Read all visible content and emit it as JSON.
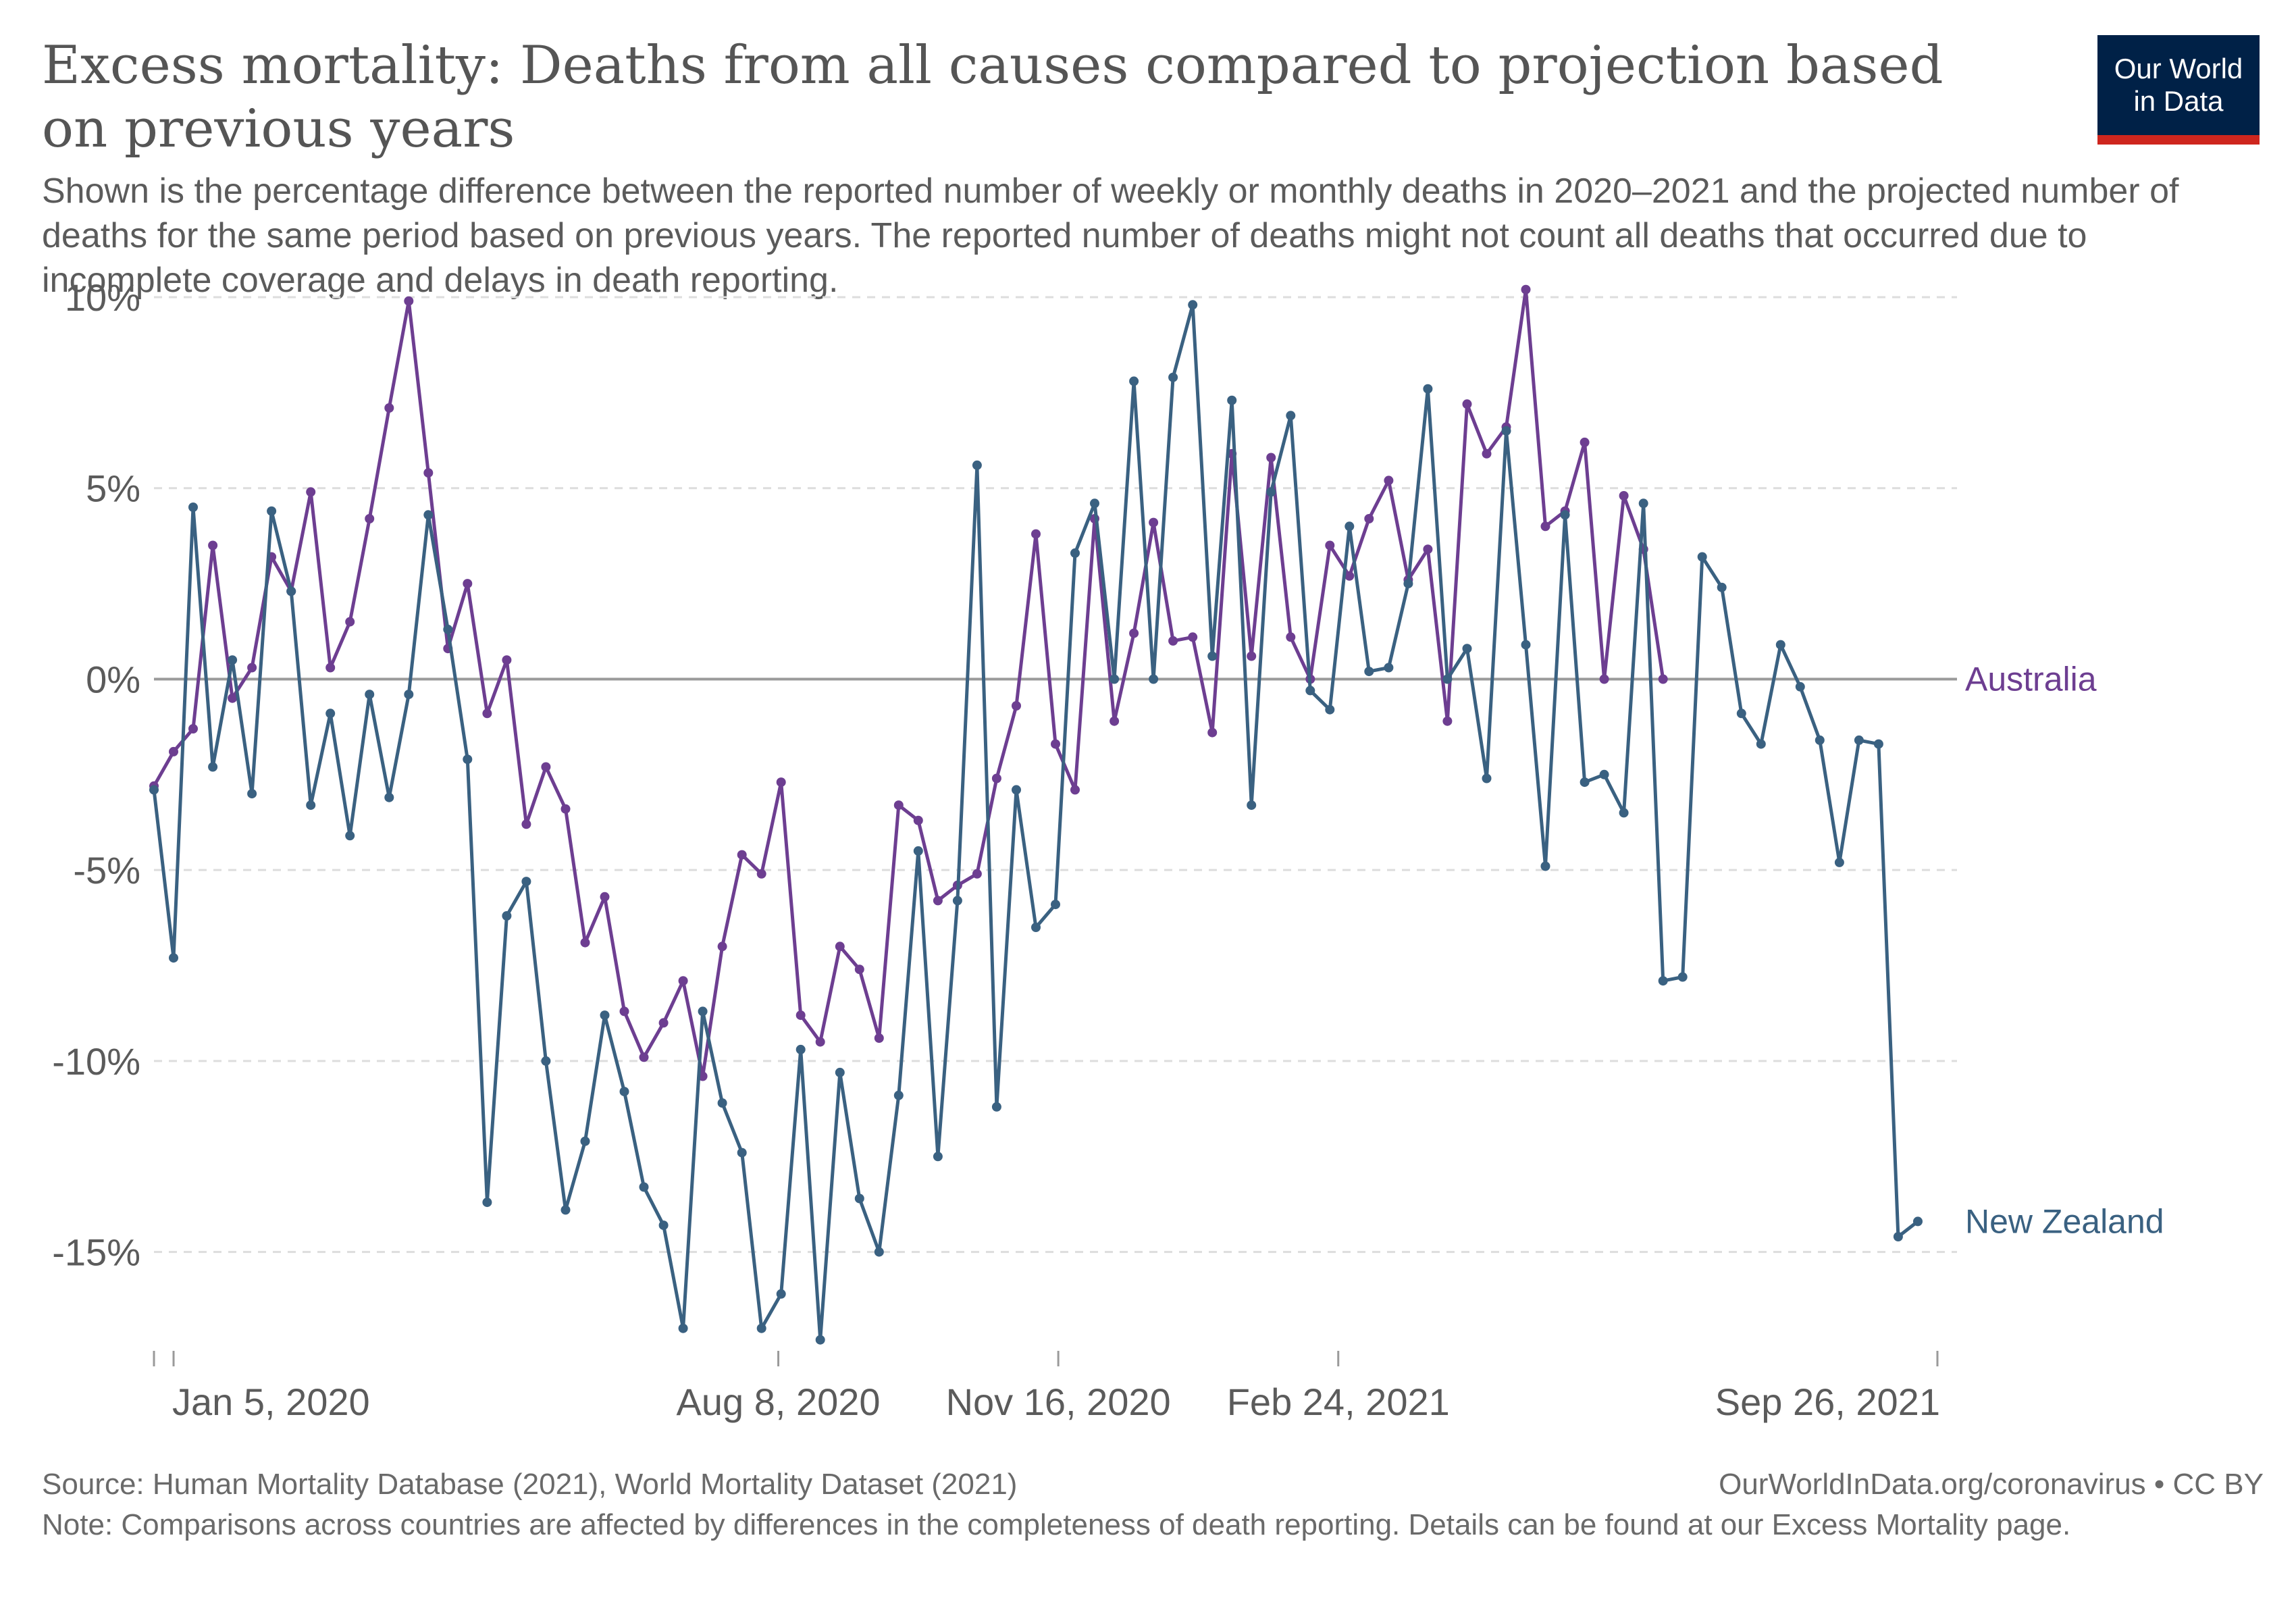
{
  "header": {
    "title": "Excess mortality: Deaths from all causes compared to projection based on previous years",
    "subtitle": "Shown is the percentage difference between the reported number of weekly or monthly deaths in 2020–2021 and the projected number of deaths for the same period based on previous years. The reported number of deaths might not count all deaths that occurred due to incomplete coverage and delays in death reporting."
  },
  "logo": {
    "line1": "Our World",
    "line2": "in Data",
    "bg_color": "#002147",
    "accent_color": "#ce261e"
  },
  "footer": {
    "source": "Source: Human Mortality Database (2021), World Mortality Dataset (2021)",
    "license": "OurWorldInData.org/coronavirus • CC BY",
    "note": "Note: Comparisons across countries are affected by differences in the completeness of death reporting. Details can be found at our Excess Mortality page."
  },
  "chart_data": {
    "type": "line",
    "title": "Excess mortality: Deaths from all causes compared to projection based on previous years",
    "ylim": [
      -17.5,
      10
    ],
    "y_ticks": [
      10,
      5,
      0,
      -5,
      -10,
      -15
    ],
    "y_tick_labels": [
      "10%",
      "5%",
      "0%",
      "-5%",
      "-10%",
      "-15%"
    ],
    "x_start": "2019-12-29",
    "x_end": "2021-10-03",
    "x_ticks": [
      {
        "date": "2020-01-05",
        "label": "Jan 5, 2020"
      },
      {
        "date": "2020-08-08",
        "label": "Aug 8, 2020"
      },
      {
        "date": "2020-11-16",
        "label": "Nov 16, 2020"
      },
      {
        "date": "2021-02-24",
        "label": "Feb 24, 2021"
      },
      {
        "date": "2021-09-26",
        "label": "Sep 26, 2021"
      }
    ],
    "grid": true,
    "series": [
      {
        "name": "Australia",
        "color": "#6d3e91",
        "start": "2019-12-29",
        "step_days": 7,
        "values": [
          -2.8,
          -1.9,
          -1.3,
          3.5,
          -0.5,
          0.3,
          3.2,
          2.3,
          4.9,
          0.3,
          1.5,
          4.2,
          7.1,
          9.9,
          5.4,
          0.8,
          2.5,
          -0.9,
          0.5,
          -3.8,
          -2.3,
          -3.4,
          -6.9,
          -5.7,
          -8.7,
          -9.9,
          -9.0,
          -7.9,
          -10.4,
          -7.0,
          -4.6,
          -5.1,
          -2.7,
          -8.8,
          -9.5,
          -7.0,
          -7.6,
          -9.4,
          -3.3,
          -3.7,
          -5.8,
          -5.4,
          -5.1,
          -2.6,
          -0.7,
          3.8,
          -1.7,
          -2.9,
          4.2,
          -1.1,
          1.2,
          4.1,
          1.0,
          1.1,
          -1.4,
          5.9,
          0.6,
          5.8,
          1.1,
          0.0,
          3.5,
          2.7,
          4.2,
          5.2,
          2.6,
          3.4,
          -1.1,
          7.2,
          5.9,
          6.6,
          10.2,
          4.0,
          4.4,
          6.2,
          0.0,
          4.8,
          3.4,
          0.0
        ]
      },
      {
        "name": "New Zealand",
        "color": "#3a6181",
        "start": "2019-12-29",
        "step_days": 7,
        "values": [
          -2.9,
          -7.3,
          4.5,
          -2.3,
          0.5,
          -3.0,
          4.4,
          2.3,
          -3.3,
          -0.9,
          -4.1,
          -0.4,
          -3.1,
          -0.4,
          4.3,
          1.3,
          -2.1,
          -13.7,
          -6.2,
          -5.3,
          -10.0,
          -13.9,
          -12.1,
          -8.8,
          -10.8,
          -13.3,
          -14.3,
          -17.0,
          -8.7,
          -11.1,
          -12.4,
          -17.0,
          -16.1,
          -9.7,
          -17.3,
          -10.3,
          -13.6,
          -15.0,
          -10.9,
          -4.5,
          -12.5,
          -5.8,
          5.6,
          -11.2,
          -2.9,
          -6.5,
          -5.9,
          3.3,
          4.6,
          0.0,
          7.8,
          0.0,
          7.9,
          9.8,
          0.6,
          7.3,
          -3.3,
          4.9,
          6.9,
          -0.3,
          -0.8,
          4.0,
          0.2,
          0.3,
          2.5,
          7.6,
          0.0,
          0.8,
          -2.6,
          6.5,
          0.9,
          -4.9,
          4.3,
          -2.7,
          -2.5,
          -3.5,
          4.6,
          -7.9,
          -7.8,
          3.2,
          2.4,
          -0.9,
          -1.7,
          0.9,
          -0.2,
          -1.6,
          -4.8,
          -1.6,
          -1.7,
          -14.6,
          -14.2
        ]
      }
    ]
  }
}
